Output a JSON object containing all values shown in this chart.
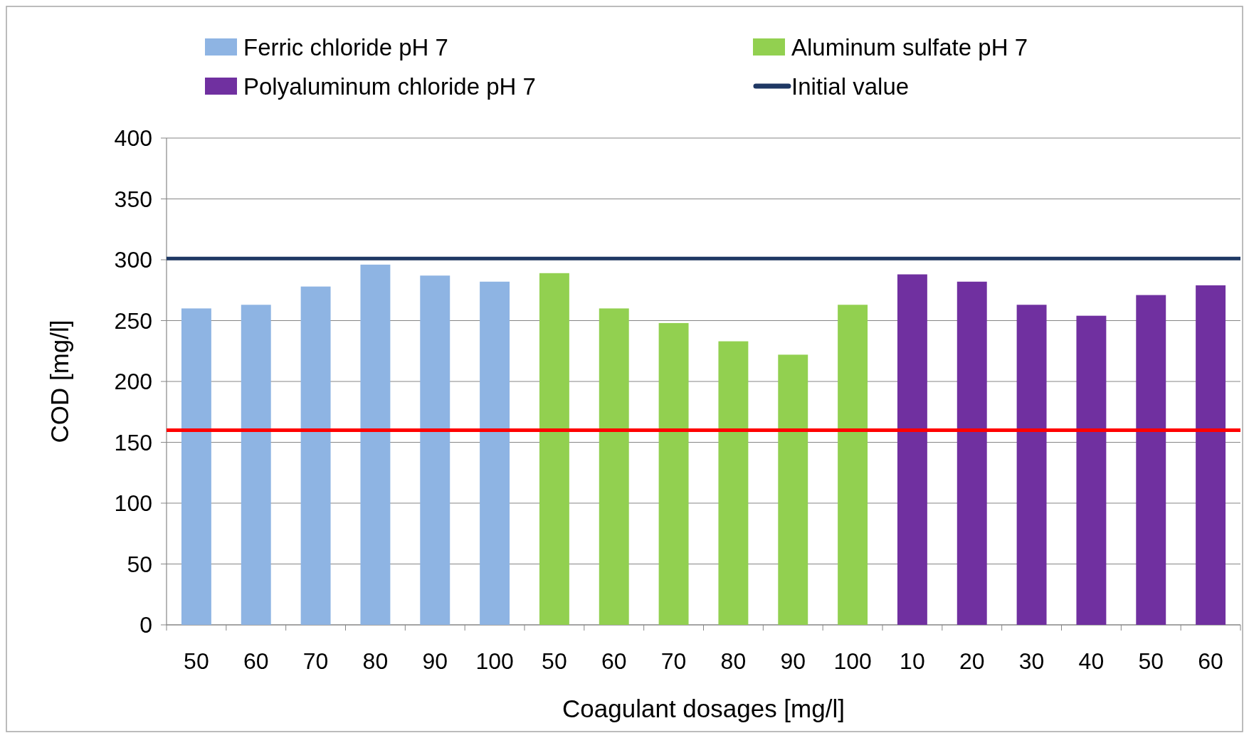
{
  "chart_data": {
    "type": "bar",
    "xlabel": "Coagulant dosages [mg/l]",
    "ylabel": "COD [mg/l]",
    "categories": [
      "50",
      "60",
      "70",
      "80",
      "90",
      "100",
      "50",
      "60",
      "70",
      "80",
      "90",
      "100",
      "10",
      "20",
      "30",
      "40",
      "50",
      "60"
    ],
    "series": [
      {
        "name": "Ferric chloride pH 7",
        "color": "#8eb4e3",
        "values": [
          260,
          263,
          278,
          296,
          287,
          282,
          null,
          null,
          null,
          null,
          null,
          null,
          null,
          null,
          null,
          null,
          null,
          null
        ]
      },
      {
        "name": "Aluminum sulfate pH 7",
        "color": "#92d050",
        "values": [
          null,
          null,
          null,
          null,
          null,
          null,
          289,
          260,
          248,
          233,
          222,
          263,
          null,
          null,
          null,
          null,
          null,
          null
        ]
      },
      {
        "name": "Polyaluminum chloride pH 7",
        "color": "#7030a0",
        "values": [
          null,
          null,
          null,
          null,
          null,
          null,
          null,
          null,
          null,
          null,
          null,
          null,
          288,
          282,
          263,
          254,
          271,
          279
        ]
      }
    ],
    "ref_lines": [
      {
        "axis": "y",
        "value": 301,
        "label": "Initial value",
        "color": "#1f3864"
      },
      {
        "axis": "y",
        "value": 160,
        "color": "#ff0000"
      }
    ],
    "ylim": [
      0,
      400
    ],
    "yticks": [
      0,
      50,
      100,
      150,
      200,
      250,
      300,
      350,
      400
    ],
    "grid": "y",
    "legend": "top"
  }
}
